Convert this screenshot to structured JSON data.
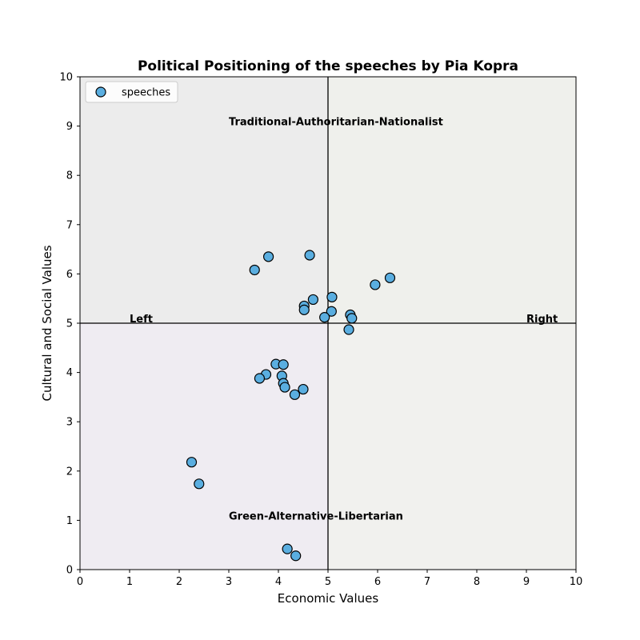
{
  "chart_data": {
    "type": "scatter",
    "title": "Political Positioning of the speeches by Pia Kopra",
    "xlabel": "Economic Values",
    "ylabel": "Cultural and Social Values",
    "xlim": [
      0,
      10
    ],
    "ylim": [
      0,
      10
    ],
    "xticks": [
      "0",
      "1",
      "2",
      "3",
      "4",
      "5",
      "6",
      "7",
      "8",
      "9",
      "10"
    ],
    "yticks": [
      "0",
      "1",
      "2",
      "3",
      "4",
      "5",
      "6",
      "7",
      "8",
      "9",
      "10"
    ],
    "grid": false,
    "legend": {
      "position": "top-left",
      "entries": [
        "speeches"
      ]
    },
    "quadrant_colors": {
      "top_left": "#ececec",
      "top_right": "#eff0ec",
      "bottom_left": "#efecf2",
      "bottom_right": "#f1f1ee"
    },
    "marker_color": "#5aaee0",
    "marker_edge_color": "#000000",
    "center_lines": {
      "x": 5,
      "y": 5
    },
    "annotations": [
      {
        "text": "Traditional-Authoritarian-Nationalist",
        "x": 3.0,
        "y": 9.0
      },
      {
        "text": "Green-Alternative-Libertarian",
        "x": 3.0,
        "y": 1.0
      },
      {
        "text": "Left",
        "x": 1.0,
        "y": 5.0
      },
      {
        "text": "Right",
        "x": 9.0,
        "y": 5.0
      }
    ],
    "series": [
      {
        "name": "speeches",
        "points": [
          [
            3.52,
            6.08
          ],
          [
            3.8,
            6.35
          ],
          [
            4.63,
            6.38
          ],
          [
            5.95,
            5.78
          ],
          [
            6.25,
            5.92
          ],
          [
            5.08,
            5.53
          ],
          [
            4.7,
            5.48
          ],
          [
            4.52,
            5.35
          ],
          [
            4.52,
            5.27
          ],
          [
            5.07,
            5.24
          ],
          [
            4.93,
            5.12
          ],
          [
            5.45,
            5.17
          ],
          [
            5.48,
            5.1
          ],
          [
            5.42,
            4.87
          ],
          [
            3.95,
            4.17
          ],
          [
            4.1,
            4.16
          ],
          [
            3.75,
            3.96
          ],
          [
            4.07,
            3.93
          ],
          [
            3.62,
            3.88
          ],
          [
            4.1,
            3.78
          ],
          [
            4.13,
            3.7
          ],
          [
            4.5,
            3.66
          ],
          [
            4.33,
            3.55
          ],
          [
            2.25,
            2.18
          ],
          [
            2.4,
            1.74
          ],
          [
            4.18,
            0.42
          ],
          [
            4.35,
            0.28
          ]
        ]
      }
    ]
  }
}
